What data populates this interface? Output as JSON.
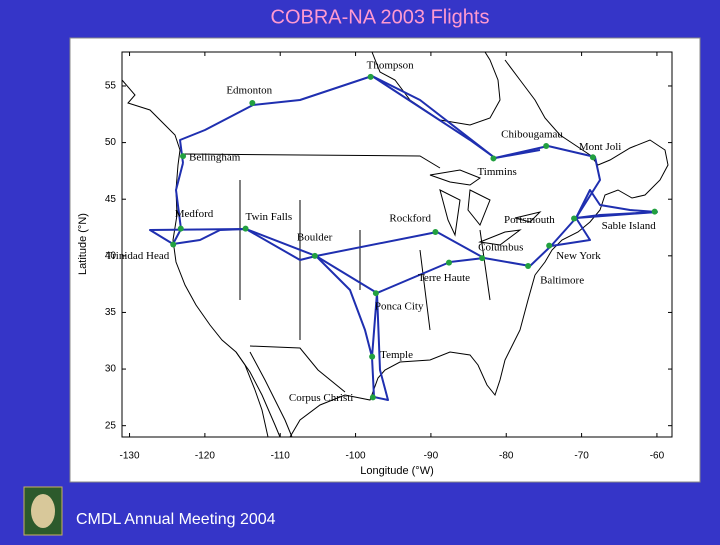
{
  "footer": "CMDL Annual Meeting 2004",
  "chart_data": {
    "type": "map",
    "title": "COBRA-NA 2003 Flights",
    "x_label": "Longitude (°W)",
    "y_label": "Latitude (°N)",
    "categories": [
      "Thompson",
      "Edmonton",
      "Bellingham",
      "Chibougamau",
      "Timmins",
      "Mont Joli",
      "Medford",
      "Twin Falls",
      "Trinidad Head",
      "Boulder",
      "Rockford",
      "Columbus",
      "Terre Haute",
      "Portsmouth",
      "Sable Island",
      "New York",
      "Baltimore",
      "Ponca City",
      "Temple",
      "Corpus Christi"
    ],
    "x": [
      -98.0,
      -113.7,
      -122.9,
      -74.7,
      -81.7,
      -68.5,
      -123.2,
      -114.6,
      -124.2,
      -105.4,
      -89.4,
      -83.2,
      -87.6,
      -71.0,
      -60.3,
      -74.3,
      -77.1,
      -97.3,
      -97.8,
      -97.7
    ],
    "values": [
      55.8,
      53.5,
      48.8,
      49.7,
      48.6,
      48.7,
      42.4,
      42.4,
      41.0,
      40.0,
      42.1,
      39.8,
      39.4,
      43.3,
      43.9,
      40.9,
      39.1,
      36.7,
      31.1,
      27.5
    ],
    "color": "#22a040",
    "xlim": [
      -131,
      -58
    ],
    "xticks": [
      -130,
      -120,
      -110,
      -100,
      -90,
      -80,
      -70,
      -60
    ],
    "ylim": [
      24,
      58
    ],
    "yticks": [
      25,
      30,
      35,
      40,
      45,
      50,
      55
    ]
  }
}
